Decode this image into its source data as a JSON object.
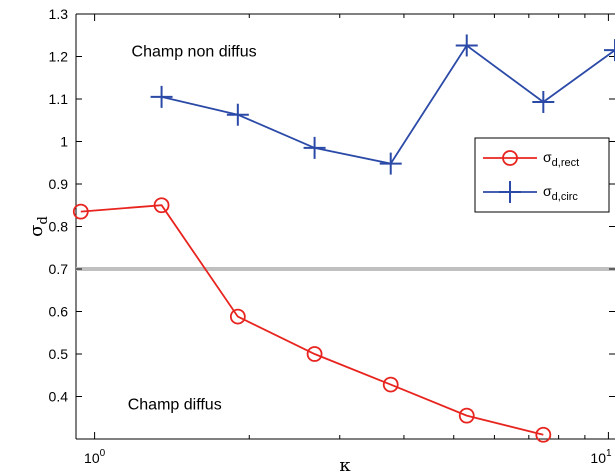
{
  "chart_data": {
    "type": "line",
    "xscale": "log",
    "xlim": [
      0.92,
      10.3
    ],
    "ylim": [
      0.3,
      1.3
    ],
    "xlabel": "κ",
    "ylabel": "σ",
    "ylabel_sub": "d",
    "x_ticks": [
      {
        "value": 1,
        "base": "10",
        "exp": "0"
      },
      {
        "value": 10,
        "base": "10",
        "exp": "1"
      }
    ],
    "y_ticks": [
      "0.4",
      "0.5",
      "0.6",
      "0.7",
      "0.8",
      "0.9",
      "1",
      "1.1",
      "1.2",
      "1.3"
    ],
    "threshold": {
      "y": 0.7,
      "color": "#c0c0c0"
    },
    "annotations": [
      {
        "text": "Champ non diffus",
        "x": 1.18,
        "y": 1.2
      },
      {
        "text": "Champ diffus",
        "x": 1.16,
        "y": 0.37
      }
    ],
    "series": [
      {
        "name": "σd,rect",
        "name_main": "σ",
        "name_sub": "d,rect",
        "color": "#e8241f",
        "marker": "circle",
        "x": [
          0.94,
          1.35,
          1.9,
          2.68,
          3.77,
          5.3,
          7.47
        ],
        "y": [
          0.835,
          0.85,
          0.588,
          0.5,
          0.428,
          0.355,
          0.31
        ]
      },
      {
        "name": "σd,circ",
        "name_main": "σ",
        "name_sub": "d,circ",
        "color": "#2b4aa7",
        "marker": "plus",
        "x": [
          1.35,
          1.9,
          2.68,
          3.77,
          5.3,
          7.47,
          10.3
        ],
        "y": [
          1.105,
          1.063,
          0.985,
          0.948,
          1.226,
          1.093,
          1.215
        ]
      }
    ],
    "legend": {
      "position": "right"
    },
    "grid": false
  }
}
